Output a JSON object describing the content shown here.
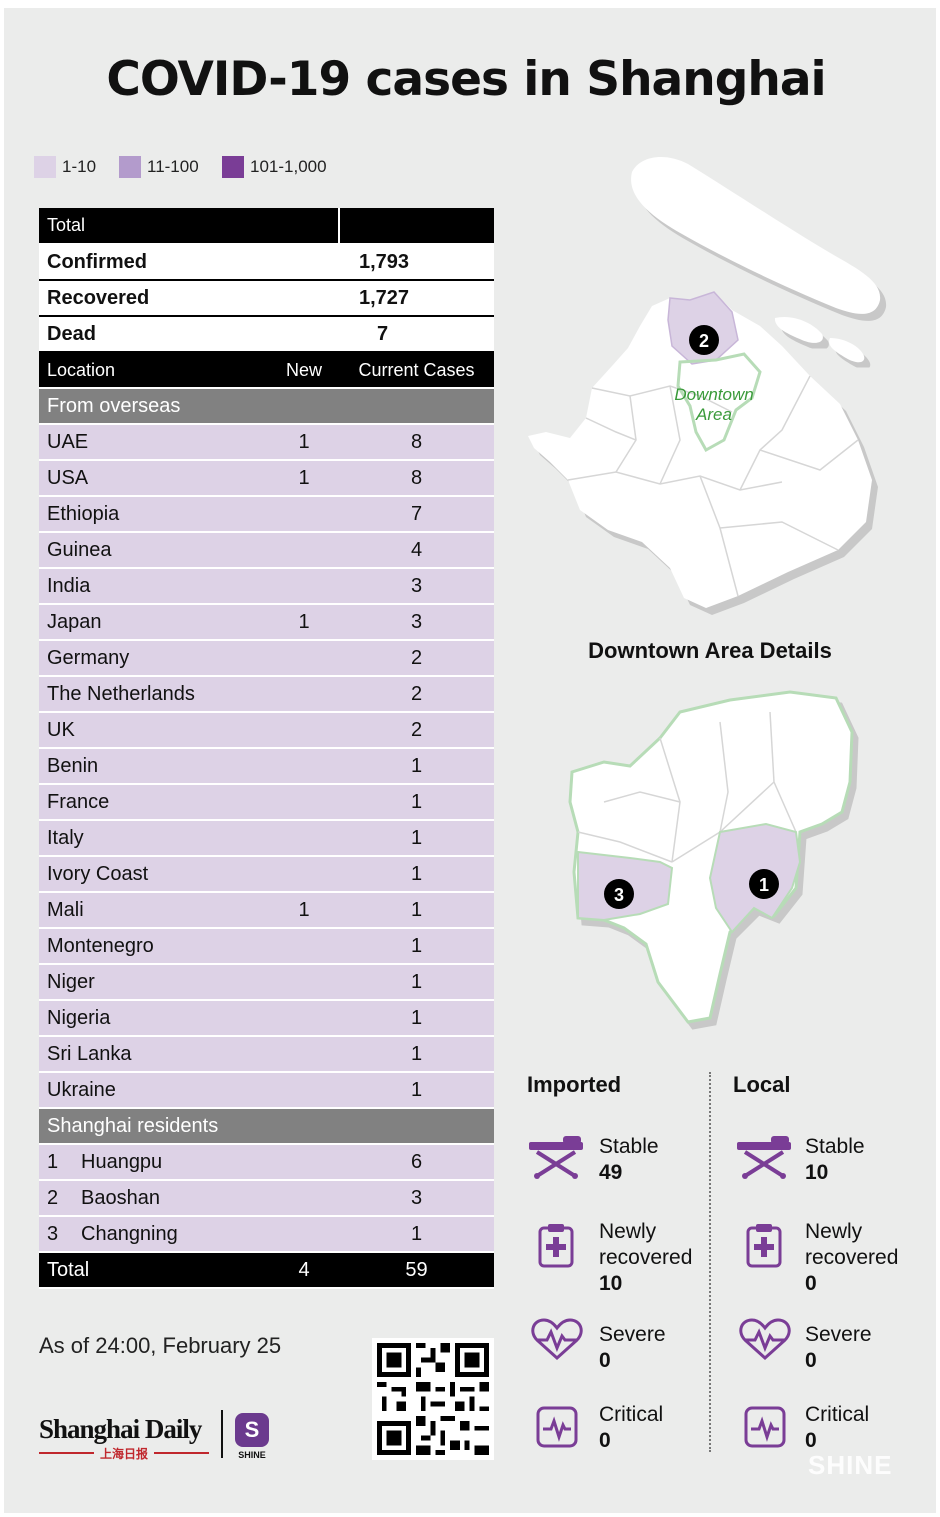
{
  "title": "COVID-19 cases in Shanghai",
  "legend": [
    {
      "label": "1-10",
      "color": "#ddd2e6"
    },
    {
      "label": "11-100",
      "color": "#b39bcc"
    },
    {
      "label": "101-1,000",
      "color": "#7a3d96"
    }
  ],
  "table": {
    "total_header": "Total",
    "confirmed_label": "Confirmed",
    "confirmed_value": "1,793",
    "recovered_label": "Recovered",
    "recovered_value": "1,727",
    "dead_label": "Dead",
    "dead_value": "7",
    "col_location": "Location",
    "col_new": "New",
    "col_current": "Current Cases",
    "overseas_header": "From overseas",
    "overseas": [
      {
        "name": "UAE",
        "new": "1",
        "current": "8"
      },
      {
        "name": "USA",
        "new": "1",
        "current": "8"
      },
      {
        "name": "Ethiopia",
        "new": "",
        "current": "7"
      },
      {
        "name": "Guinea",
        "new": "",
        "current": "4"
      },
      {
        "name": "India",
        "new": "",
        "current": "3"
      },
      {
        "name": "Japan",
        "new": "1",
        "current": "3"
      },
      {
        "name": "Germany",
        "new": "",
        "current": "2"
      },
      {
        "name": "The Netherlands",
        "new": "",
        "current": "2"
      },
      {
        "name": "UK",
        "new": "",
        "current": "2"
      },
      {
        "name": "Benin",
        "new": "",
        "current": "1"
      },
      {
        "name": "France",
        "new": "",
        "current": "1"
      },
      {
        "name": "Italy",
        "new": "",
        "current": "1"
      },
      {
        "name": "Ivory Coast",
        "new": "",
        "current": "1"
      },
      {
        "name": "Mali",
        "new": "1",
        "current": "1"
      },
      {
        "name": "Montenegro",
        "new": "",
        "current": "1"
      },
      {
        "name": "Niger",
        "new": "",
        "current": "1"
      },
      {
        "name": "Nigeria",
        "new": "",
        "current": "1"
      },
      {
        "name": "Sri Lanka",
        "new": "",
        "current": "1"
      },
      {
        "name": "Ukraine",
        "new": "",
        "current": "1"
      }
    ],
    "residents_header": "Shanghai residents",
    "residents": [
      {
        "num": "1",
        "name": "Huangpu",
        "current": "6"
      },
      {
        "num": "2",
        "name": "Baoshan",
        "current": "3"
      },
      {
        "num": "3",
        "name": "Changning",
        "current": "1"
      }
    ],
    "footer_label": "Total",
    "footer_new": "4",
    "footer_current": "59"
  },
  "as_of": "As of 24:00, February 25",
  "logo_shanghai_daily": "Shanghai Daily",
  "logo_shanghai_daily_cn": "上海日报",
  "logo_shine_small": "SHINE",
  "logo_shine_letter": "S",
  "map": {
    "marker_baoshan": "2",
    "downtown_label_line1": "Downtown",
    "downtown_label_line2": "Area",
    "details_title": "Downtown Area Details",
    "marker_huangpu": "1",
    "marker_changning": "3"
  },
  "status": {
    "imported_title": "Imported",
    "local_title": "Local",
    "imported": {
      "stable_label": "Stable",
      "stable_value": "49",
      "recovered_label_1": "Newly",
      "recovered_label_2": "recovered",
      "recovered_value": "10",
      "severe_label": "Severe",
      "severe_value": "0",
      "critical_label": "Critical",
      "critical_value": "0"
    },
    "local": {
      "stable_label": "Stable",
      "stable_value": "10",
      "recovered_label_1": "Newly",
      "recovered_label_2": "recovered",
      "recovered_value": "0",
      "severe_label": "Severe",
      "severe_value": "0",
      "critical_label": "Critical",
      "critical_value": "0"
    }
  },
  "watermark": "SHINE",
  "icon_color": "#7a3d96"
}
